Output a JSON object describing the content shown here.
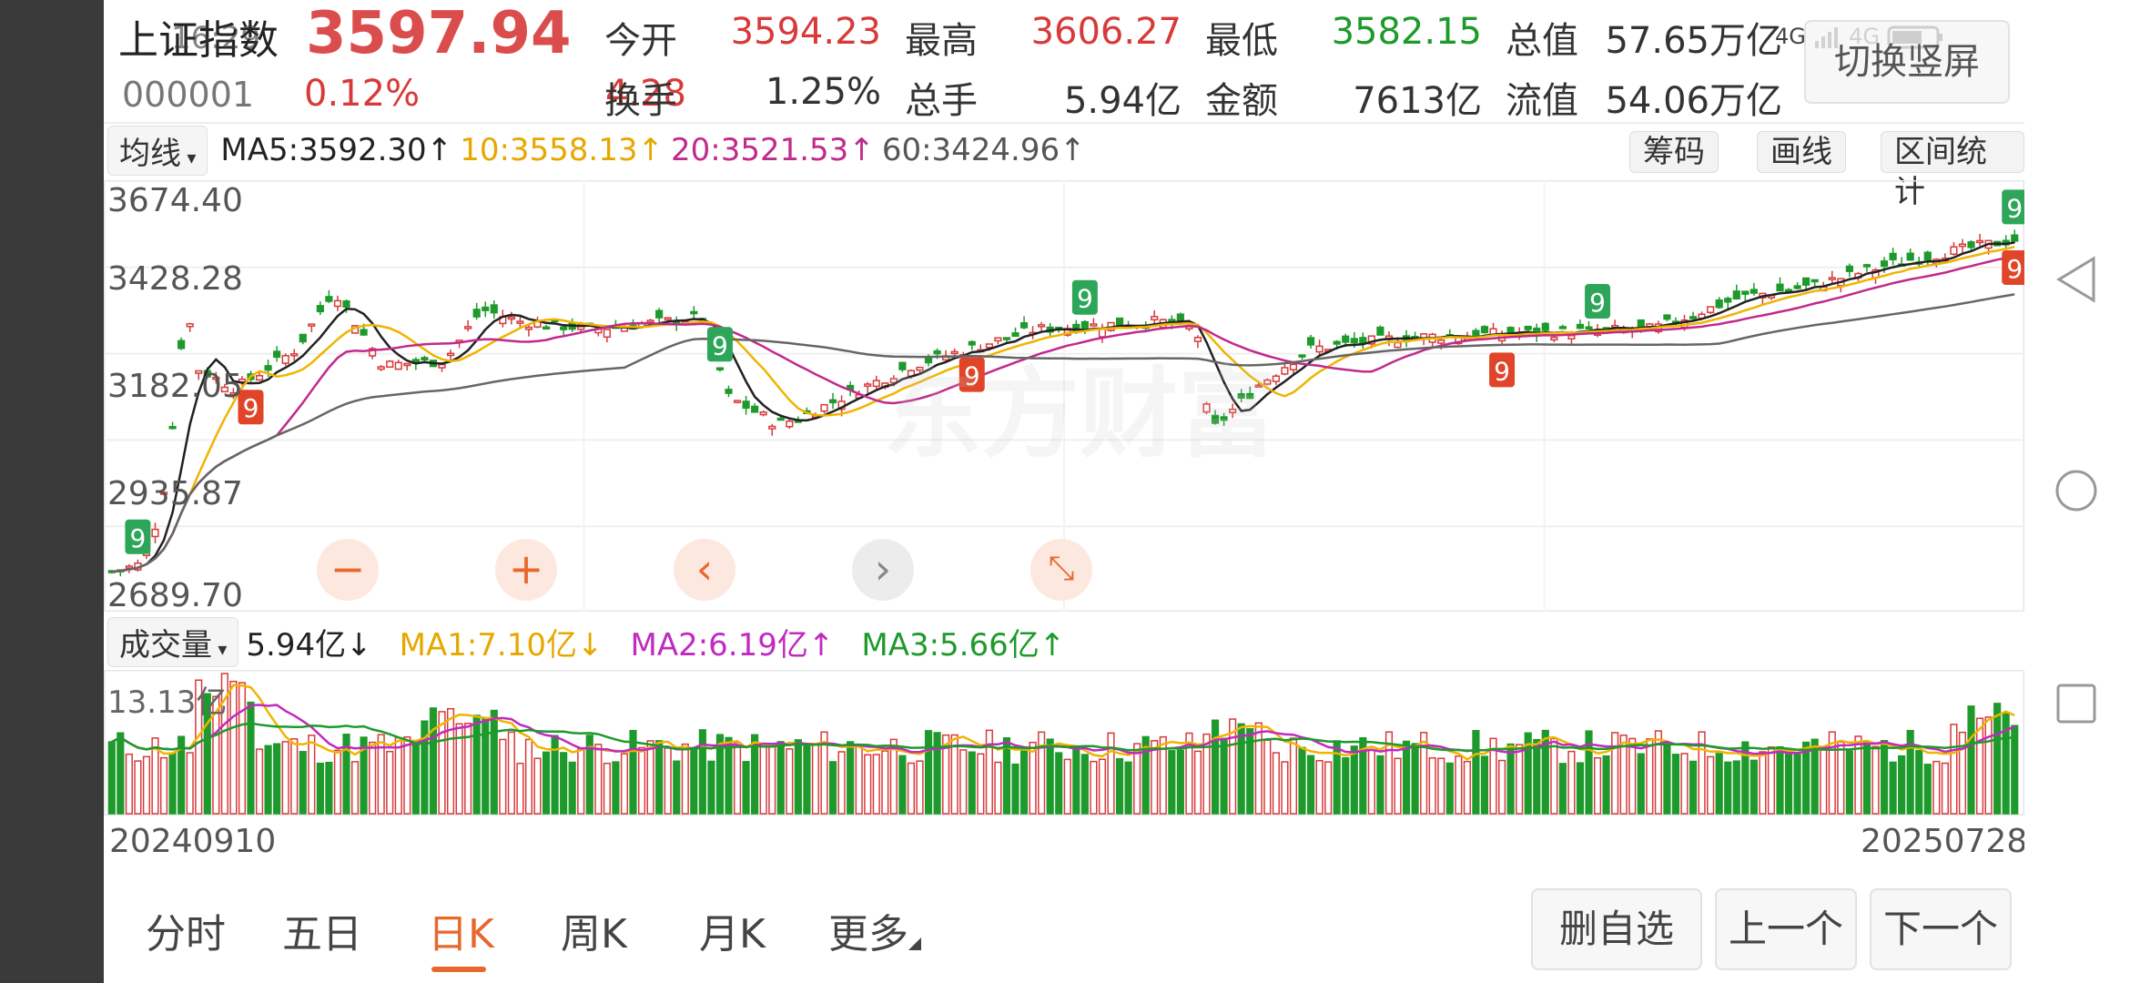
{
  "status_bar": {
    "time": "16:29",
    "network": "4G",
    "signal2": "4G"
  },
  "quote": {
    "name": "上证指数",
    "price": "3597.94",
    "code": "000001",
    "change_pct": "0.12%",
    "change": "4.28",
    "stats": [
      {
        "label": "今开",
        "value": "3594.23",
        "color": "red"
      },
      {
        "label": "最高",
        "value": "3606.27",
        "color": "red"
      },
      {
        "label": "最低",
        "value": "3582.15",
        "color": "green"
      },
      {
        "label": "总值",
        "value": "57.65万亿",
        "color": "dark"
      },
      {
        "label": "换手",
        "value": "1.25%",
        "color": "dark"
      },
      {
        "label": "总手",
        "value": "5.94亿",
        "color": "dark"
      },
      {
        "label": "金额",
        "value": "7613亿",
        "color": "dark"
      },
      {
        "label": "流值",
        "value": "54.06万亿",
        "color": "dark"
      }
    ],
    "switch_button": "切换竖屏"
  },
  "ma_bar": {
    "select": "均线",
    "ma5": "MA5:3592.30↑",
    "ma10": "10:3558.13↑",
    "ma20": "20:3521.53↑",
    "ma60": "60:3424.96↑",
    "buttons": [
      "筹码",
      "画线",
      "区间统计"
    ]
  },
  "price_axis": [
    "3674.40",
    "3428.28",
    "3182.05",
    "2935.87",
    "2689.70"
  ],
  "watermark": "东方财富",
  "controls": [
    "−",
    "+",
    "‹",
    "›",
    "⤡"
  ],
  "volume_bar": {
    "select": "成交量",
    "current": "5.94亿↓",
    "ma1": "MA1:7.10亿↓",
    "ma2": "MA2:6.19亿↑",
    "ma3": "MA3:5.66亿↑",
    "max": "13.13亿"
  },
  "dates": {
    "start": "20240910",
    "end": "20250728"
  },
  "tabs": [
    "分时",
    "五日",
    "日K",
    "周K",
    "月K",
    "更多"
  ],
  "active_tab": 2,
  "bottom_buttons": [
    "删自选",
    "上一个",
    "下一个"
  ],
  "colors": {
    "up": "#d83a3a",
    "down": "#1e9a2c",
    "ma5": "#222222",
    "ma10": "#f0b400",
    "ma20": "#c02a8c",
    "ma60": "#666666",
    "accent": "#e8672d"
  },
  "chart_data": {
    "type": "candlestick",
    "ylim": [
      2689.7,
      3674.4
    ],
    "x_range": [
      "20240910",
      "20250728"
    ],
    "ma_lines": [
      "MA5",
      "MA10",
      "MA20",
      "MA60"
    ],
    "annotation_marks": [
      {
        "label": "9",
        "index": 4
      },
      {
        "label": "9",
        "index": 22
      },
      {
        "label": "9",
        "index": 98
      },
      {
        "label": "9",
        "index": 140
      },
      {
        "label": "9",
        "index": 158
      },
      {
        "label": "9",
        "index": 226
      },
      {
        "label": "9",
        "index": 241
      },
      {
        "label": "9",
        "index": 315
      },
      {
        "label": "9",
        "index": 369
      }
    ]
  }
}
